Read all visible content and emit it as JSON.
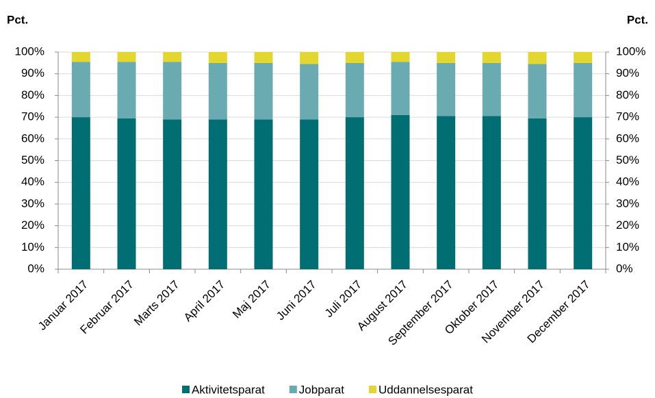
{
  "chart_data": {
    "type": "stacked_bar",
    "y_label": "Pct.",
    "y2_label": "Pct.",
    "categories": [
      "Januar 2017",
      "Februar 2017",
      "Marts 2017",
      "April 2017",
      "Maj 2017",
      "Juni 2017",
      "Juli 2017",
      "August 2017",
      "September 2017",
      "Oktober 2017",
      "November 2017",
      "December 2017"
    ],
    "series": [
      {
        "name": "Aktivitetsparat",
        "color": "#006e73",
        "values": [
          70,
          69.5,
          69,
          69,
          69,
          69,
          70,
          71,
          70.5,
          70.5,
          69.5,
          70
        ]
      },
      {
        "name": "Jobparat",
        "color": "#6aabb1",
        "values": [
          25.5,
          26,
          26.5,
          26,
          26,
          25.5,
          25,
          24.5,
          24.5,
          24.5,
          25,
          25
        ]
      },
      {
        "name": "Uddannelsesparat",
        "color": "#e3d62e",
        "values": [
          4.5,
          4.5,
          4.5,
          5,
          5,
          5.5,
          5,
          4.5,
          5,
          5,
          5.5,
          5
        ]
      }
    ],
    "ylim": [
      0,
      100
    ],
    "yticks": [
      {
        "value": 0,
        "label": "0%"
      },
      {
        "value": 10,
        "label": "10%"
      },
      {
        "value": 20,
        "label": "20%"
      },
      {
        "value": 30,
        "label": "30%"
      },
      {
        "value": 40,
        "label": "40%"
      },
      {
        "value": 50,
        "label": "50%"
      },
      {
        "value": 60,
        "label": "60%"
      },
      {
        "value": 70,
        "label": "70%"
      },
      {
        "value": 80,
        "label": "80%"
      },
      {
        "value": 90,
        "label": "90%"
      },
      {
        "value": 100,
        "label": "100%"
      }
    ],
    "y2lim": [
      0,
      100
    ],
    "y2ticks": [
      {
        "value": 0,
        "label": "0%"
      },
      {
        "value": 10,
        "label": "10%"
      },
      {
        "value": 20,
        "label": "20%"
      },
      {
        "value": 30,
        "label": "30%"
      },
      {
        "value": 40,
        "label": "40%"
      },
      {
        "value": 50,
        "label": "50%"
      },
      {
        "value": 60,
        "label": "60%"
      },
      {
        "value": 70,
        "label": "70%"
      },
      {
        "value": 80,
        "label": "80%"
      },
      {
        "value": 90,
        "label": "90%"
      },
      {
        "value": 100,
        "label": "100%"
      }
    ],
    "grid": true,
    "legend": "bottom"
  }
}
